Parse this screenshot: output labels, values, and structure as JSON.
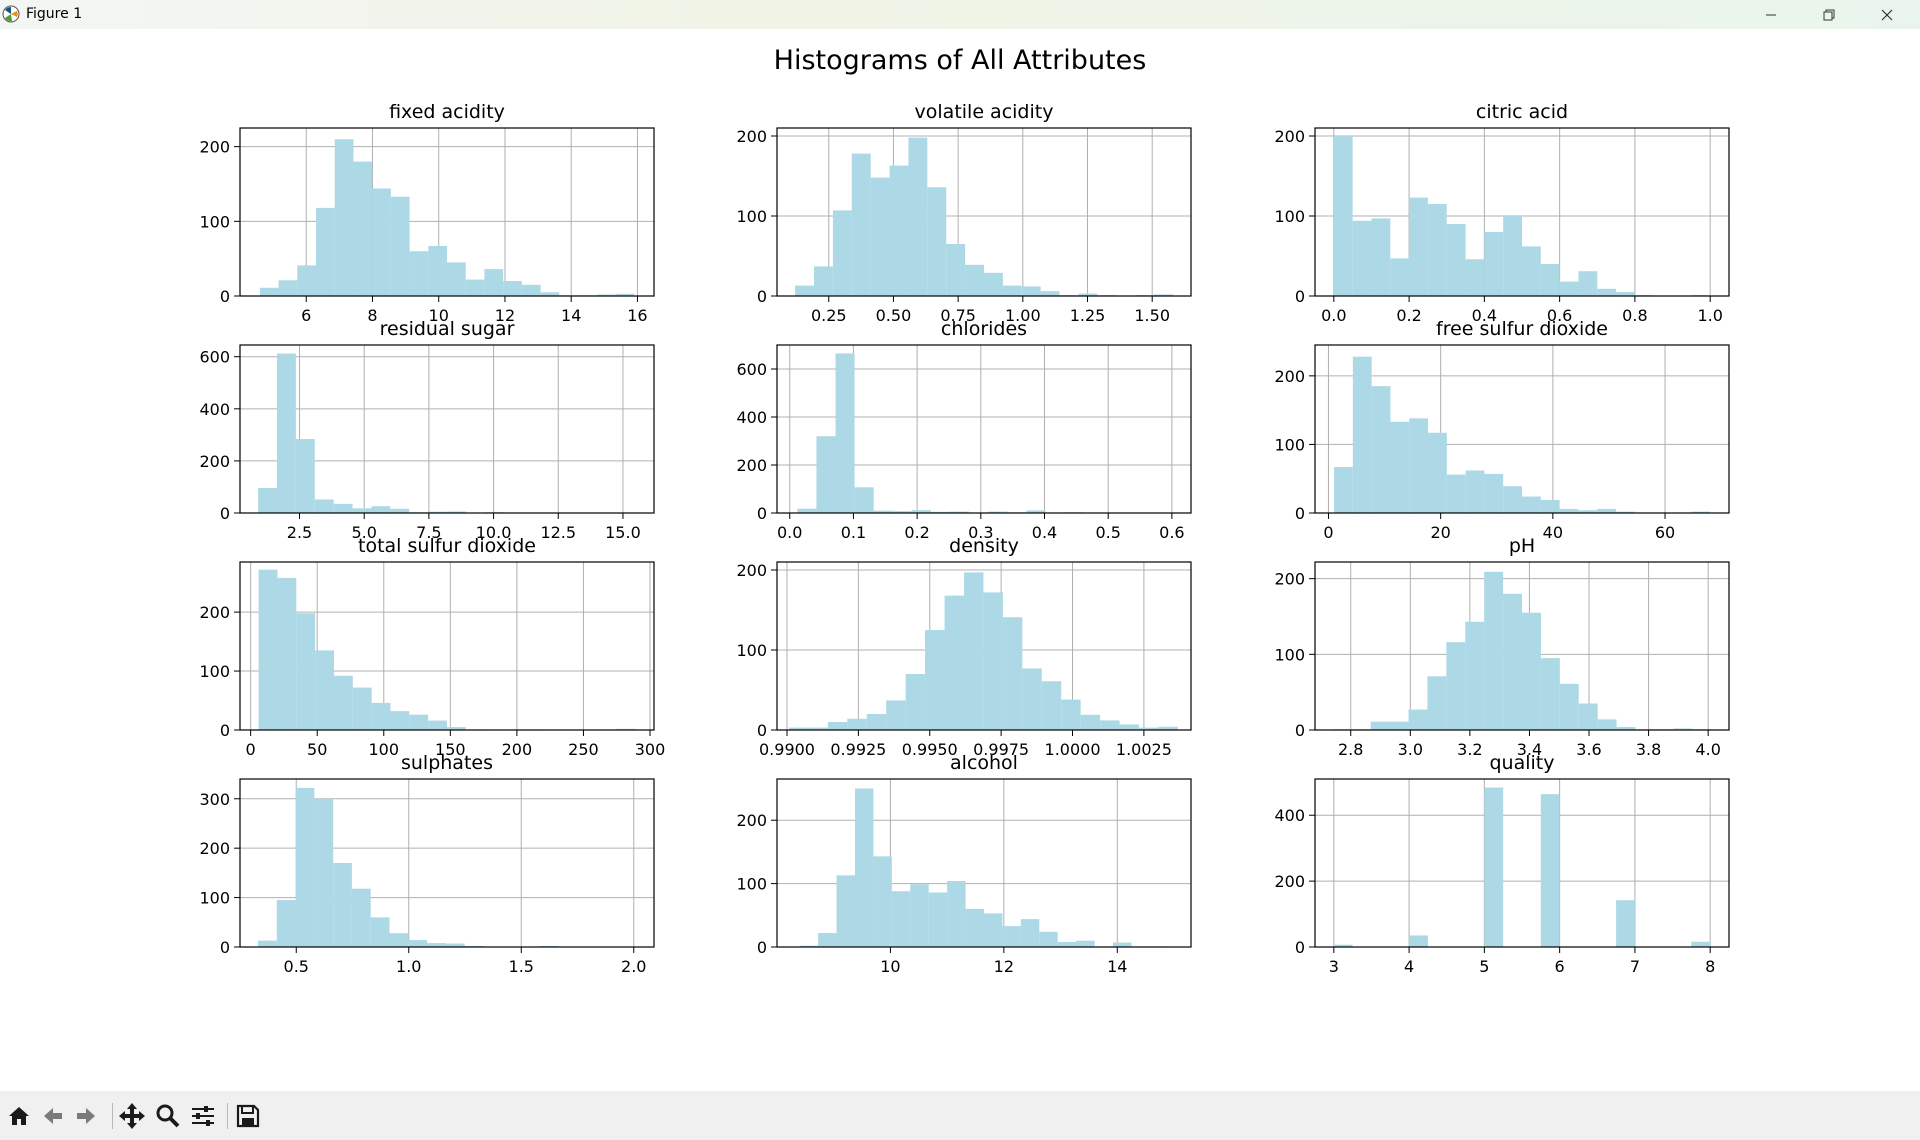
{
  "window": {
    "title": "Figure 1",
    "controls": [
      "minimize-icon",
      "restore-icon",
      "close-icon"
    ]
  },
  "toolbar": {
    "buttons": [
      "home-icon",
      "back-icon",
      "forward-icon",
      "pan-icon",
      "zoom-icon",
      "configure-subplots-icon",
      "save-icon"
    ]
  },
  "colors": {
    "bar": "#add8e6",
    "grid": "#b0b0b0"
  },
  "chart_data": {
    "suptitle": "Histograms of All Attributes",
    "type": "bar",
    "grid": true,
    "bins": 20,
    "subplots": [
      {
        "title": "fixed acidity",
        "xlim": [
          4.0,
          16.5
        ],
        "ylim": [
          0,
          225
        ],
        "xticks": [
          6,
          8,
          10,
          12,
          14,
          16
        ],
        "xtick_labels": [
          "6",
          "8",
          "10",
          "12",
          "14",
          "16"
        ],
        "yticks": [
          0,
          100,
          200
        ],
        "ytick_labels": [
          "0",
          "100",
          "200"
        ],
        "bin_start": 4.6,
        "bin_end": 15.9,
        "values": [
          11,
          21,
          41,
          118,
          210,
          180,
          144,
          133,
          60,
          67,
          45,
          22,
          36,
          20,
          15,
          5,
          1,
          1,
          2,
          3
        ]
      },
      {
        "title": "volatile acidity",
        "xlim": [
          0.05,
          1.65
        ],
        "ylim": [
          0,
          210
        ],
        "xticks": [
          0.25,
          0.5,
          0.75,
          1.0,
          1.25,
          1.5
        ],
        "xtick_labels": [
          "0.25",
          "0.50",
          "0.75",
          "1.00",
          "1.25",
          "1.50"
        ],
        "yticks": [
          0,
          100,
          200
        ],
        "ytick_labels": [
          "0",
          "100",
          "200"
        ],
        "bin_start": 0.12,
        "bin_end": 1.58,
        "values": [
          13,
          37,
          107,
          178,
          148,
          163,
          198,
          136,
          65,
          39,
          29,
          13,
          12,
          6,
          1,
          3,
          1,
          0,
          1,
          2
        ]
      },
      {
        "title": "citric acid",
        "xlim": [
          -0.05,
          1.05
        ],
        "ylim": [
          0,
          210
        ],
        "xticks": [
          0.0,
          0.2,
          0.4,
          0.6,
          0.8,
          1.0
        ],
        "xtick_labels": [
          "0.0",
          "0.2",
          "0.4",
          "0.6",
          "0.8",
          "1.0"
        ],
        "yticks": [
          0,
          100,
          200
        ],
        "ytick_labels": [
          "0",
          "100",
          "200"
        ],
        "bin_start": 0.0,
        "bin_end": 1.0,
        "values": [
          200,
          94,
          97,
          47,
          123,
          115,
          90,
          46,
          80,
          101,
          62,
          40,
          18,
          31,
          9,
          5,
          1,
          0,
          0,
          1
        ]
      },
      {
        "title": "residual sugar",
        "xlim": [
          0.2,
          16.2
        ],
        "ylim": [
          0,
          645
        ],
        "xticks": [
          2.5,
          5.0,
          7.5,
          10.0,
          12.5,
          15.0
        ],
        "xtick_labels": [
          "2.5",
          "5.0",
          "7.5",
          "10.0",
          "12.5",
          "15.0"
        ],
        "yticks": [
          0,
          200,
          400,
          600
        ],
        "ytick_labels": [
          "0",
          "200",
          "400",
          "600"
        ],
        "bin_start": 0.9,
        "bin_end": 15.5,
        "values": [
          96,
          612,
          284,
          52,
          35,
          18,
          26,
          16,
          3,
          5,
          6,
          2,
          3,
          2,
          1,
          0,
          1,
          0,
          1,
          1
        ]
      },
      {
        "title": "chlorides",
        "xlim": [
          -0.02,
          0.63
        ],
        "ylim": [
          0,
          700
        ],
        "xticks": [
          0.0,
          0.1,
          0.2,
          0.3,
          0.4,
          0.5,
          0.6
        ],
        "xtick_labels": [
          "0.0",
          "0.1",
          "0.2",
          "0.3",
          "0.4",
          "0.5",
          "0.6"
        ],
        "yticks": [
          0,
          200,
          400,
          600
        ],
        "ytick_labels": [
          "0",
          "200",
          "400",
          "600"
        ],
        "bin_start": 0.012,
        "bin_end": 0.611,
        "values": [
          18,
          320,
          665,
          107,
          10,
          8,
          12,
          5,
          6,
          2,
          6,
          3,
          11,
          2,
          3,
          1,
          1,
          1,
          1,
          2
        ]
      },
      {
        "title": "free sulfur dioxide",
        "xlim": [
          -2.4,
          71.4
        ],
        "ylim": [
          0,
          245
        ],
        "xticks": [
          0,
          20,
          40,
          60
        ],
        "xtick_labels": [
          "0",
          "20",
          "40",
          "60"
        ],
        "yticks": [
          0,
          100,
          200
        ],
        "ytick_labels": [
          "0",
          "100",
          "200"
        ],
        "bin_start": 1.0,
        "bin_end": 68.0,
        "values": [
          67,
          228,
          185,
          133,
          138,
          117,
          56,
          62,
          57,
          39,
          24,
          19,
          6,
          4,
          6,
          2,
          0,
          0,
          0,
          2
        ]
      },
      {
        "title": "total sulfur dioxide",
        "xlim": [
          -8,
          303
        ],
        "ylim": [
          0,
          285
        ],
        "xticks": [
          0,
          50,
          100,
          150,
          200,
          250,
          300
        ],
        "xtick_labels": [
          "0",
          "50",
          "100",
          "150",
          "200",
          "250",
          "300"
        ],
        "yticks": [
          0,
          100,
          200
        ],
        "ytick_labels": [
          "0",
          "100",
          "200"
        ],
        "bin_start": 6,
        "bin_end": 289,
        "values": [
          272,
          258,
          198,
          135,
          92,
          72,
          46,
          32,
          26,
          16,
          5,
          1,
          0,
          0,
          1,
          0,
          0,
          0,
          0,
          2
        ]
      },
      {
        "title": "density",
        "xlim": [
          0.98965,
          1.00415
        ],
        "ylim": [
          0,
          210
        ],
        "xticks": [
          0.99,
          0.9925,
          0.995,
          0.9975,
          1.0,
          1.0025
        ],
        "xtick_labels": [
          "0.9900",
          "0.9925",
          "0.9950",
          "0.9975",
          "1.0000",
          "1.0025"
        ],
        "yticks": [
          0,
          100,
          200
        ],
        "ytick_labels": [
          "0",
          "100",
          "200"
        ],
        "bin_start": 0.99007,
        "bin_end": 1.00369,
        "values": [
          3,
          3,
          10,
          14,
          20,
          37,
          70,
          125,
          168,
          197,
          172,
          141,
          77,
          61,
          38,
          19,
          12,
          7,
          3,
          4
        ]
      },
      {
        "title": "pH",
        "xlim": [
          2.68,
          4.07
        ],
        "ylim": [
          0,
          222
        ],
        "xticks": [
          2.8,
          3.0,
          3.2,
          3.4,
          3.6,
          3.8,
          4.0
        ],
        "xtick_labels": [
          "2.8",
          "3.0",
          "3.2",
          "3.4",
          "3.6",
          "3.8",
          "4.0"
        ],
        "yticks": [
          0,
          100,
          200
        ],
        "ytick_labels": [
          "0",
          "100",
          "200"
        ],
        "bin_start": 2.74,
        "bin_end": 4.01,
        "values": [
          1,
          1,
          11,
          11,
          27,
          71,
          116,
          143,
          209,
          180,
          155,
          95,
          61,
          35,
          14,
          4,
          1,
          1,
          2,
          1
        ]
      },
      {
        "title": "sulphates",
        "xlim": [
          0.25,
          2.09
        ],
        "ylim": [
          0,
          340
        ],
        "xticks": [
          0.5,
          1.0,
          1.5,
          2.0
        ],
        "xtick_labels": [
          "0.5",
          "1.0",
          "1.5",
          "2.0"
        ],
        "yticks": [
          0,
          100,
          200,
          300
        ],
        "ytick_labels": [
          "0",
          "100",
          "200",
          "300"
        ],
        "bin_start": 0.33,
        "bin_end": 2.0,
        "values": [
          13,
          95,
          322,
          300,
          170,
          118,
          60,
          28,
          14,
          8,
          7,
          2,
          1,
          1,
          1,
          2,
          0,
          0,
          0,
          1
        ]
      },
      {
        "title": "alcohol",
        "xlim": [
          8.0,
          15.3
        ],
        "ylim": [
          0,
          265
        ],
        "xticks": [
          10,
          12,
          14
        ],
        "xtick_labels": [
          "10",
          "12",
          "14"
        ],
        "yticks": [
          0,
          100,
          200
        ],
        "ytick_labels": [
          "0",
          "100",
          "200"
        ],
        "bin_start": 8.4,
        "bin_end": 14.9,
        "values": [
          2,
          22,
          113,
          250,
          143,
          88,
          99,
          86,
          104,
          60,
          53,
          33,
          44,
          24,
          8,
          10,
          1,
          7,
          1,
          1
        ]
      },
      {
        "title": "quality",
        "xlim": [
          2.75,
          8.25
        ],
        "ylim": [
          0,
          510
        ],
        "xticks": [
          3,
          4,
          5,
          6,
          7,
          8
        ],
        "xtick_labels": [
          "3",
          "4",
          "5",
          "6",
          "7",
          "8"
        ],
        "yticks": [
          0,
          200,
          400
        ],
        "ytick_labels": [
          "0",
          "200",
          "400"
        ],
        "bin_start": 3,
        "bin_end": 8,
        "values": [
          7,
          0,
          0,
          0,
          35,
          0,
          0,
          0,
          484,
          0,
          0,
          464,
          0,
          0,
          0,
          142,
          0,
          0,
          0,
          16
        ]
      }
    ]
  }
}
